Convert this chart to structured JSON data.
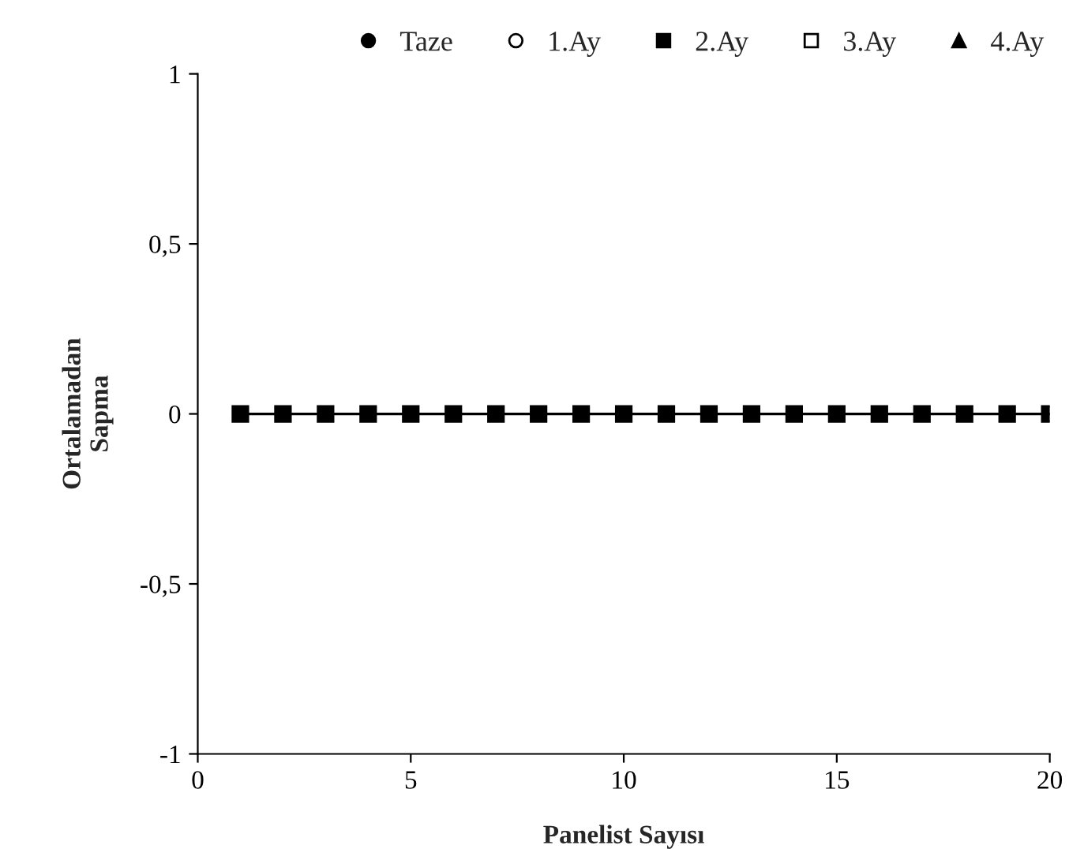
{
  "chart_data": {
    "type": "scatter",
    "xlabel": "Panelist Sayısı",
    "ylabel": "Ortalamadan\nSapma",
    "x": [
      1,
      2,
      3,
      4,
      5,
      6,
      7,
      8,
      9,
      10,
      11,
      12,
      13,
      14,
      15,
      16,
      17,
      18,
      19,
      20
    ],
    "series": [
      {
        "name": "Taze",
        "color": "#000000",
        "marker": "circle",
        "values": [
          null,
          null,
          null,
          null,
          null,
          null,
          null,
          null,
          null,
          null,
          null,
          null,
          null,
          null,
          null,
          null,
          null,
          null,
          null,
          null
        ]
      },
      {
        "name": "1.Ay",
        "color": "#ffffff",
        "marker": "circle",
        "values": [
          null,
          null,
          null,
          null,
          null,
          null,
          null,
          null,
          null,
          null,
          null,
          null,
          null,
          null,
          null,
          null,
          null,
          null,
          null,
          null
        ]
      },
      {
        "name": "2.Ay",
        "type": "line",
        "color": "#000000",
        "marker": "square",
        "values": [
          0,
          0,
          0,
          0,
          0,
          0,
          0,
          0,
          0,
          0,
          0,
          0,
          0,
          0,
          0,
          0,
          0,
          0,
          0,
          0
        ]
      },
      {
        "name": "3.Ay",
        "color": "#ffffff",
        "marker": "square",
        "values": [
          null,
          null,
          null,
          null,
          null,
          null,
          null,
          null,
          null,
          null,
          null,
          null,
          null,
          null,
          null,
          null,
          null,
          null,
          null,
          null
        ]
      },
      {
        "name": "4.Ay",
        "color": "#000000",
        "marker": "triangle",
        "values": [
          null,
          null,
          null,
          null,
          null,
          null,
          null,
          null,
          null,
          null,
          null,
          null,
          null,
          null,
          null,
          null,
          null,
          null,
          null,
          null
        ]
      }
    ],
    "xlim": [
      0,
      20
    ],
    "xticks": [
      0,
      5,
      10,
      15,
      20
    ],
    "ylim": [
      -1,
      1
    ],
    "yticks": [
      {
        "value": -1,
        "label": "-1"
      },
      {
        "value": -0.5,
        "label": "-0,5"
      },
      0,
      {
        "value": 0.5,
        "label": "0,5"
      },
      1
    ],
    "grid": false,
    "legend": "top",
    "line_style": "solid"
  }
}
